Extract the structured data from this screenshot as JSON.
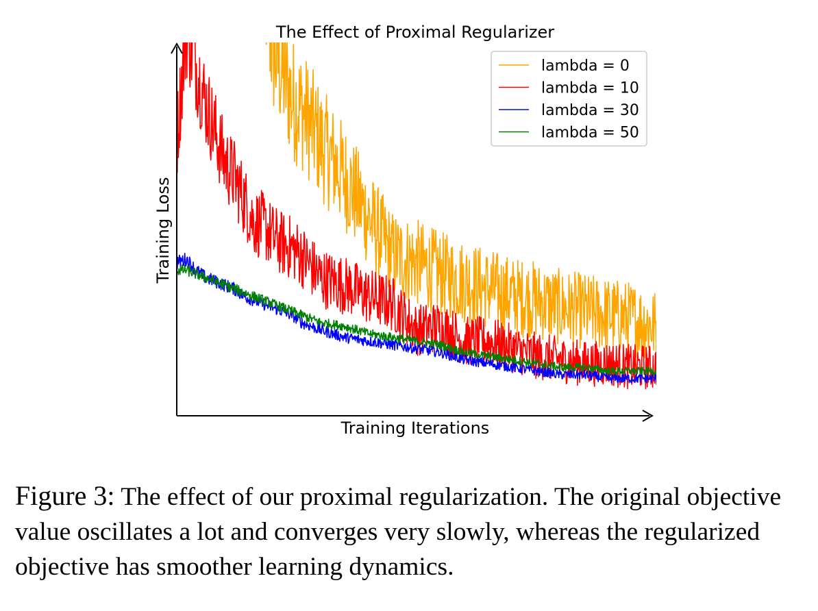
{
  "chart_data": {
    "type": "line",
    "title": "The Effect of Proximal Regularizer",
    "xlabel": "Training Iterations",
    "ylabel": "Training Loss",
    "x_ticks": false,
    "y_ticks": false,
    "grid": false,
    "legend": "top-right",
    "xlim": [
      0,
      100
    ],
    "ylim": [
      0,
      100
    ],
    "x": [
      0,
      2,
      4,
      6,
      8,
      10,
      12,
      14,
      16,
      18,
      20,
      22,
      24,
      26,
      28,
      30,
      35,
      40,
      45,
      50,
      55,
      60,
      65,
      70,
      75,
      80,
      85,
      90,
      95,
      100
    ],
    "series": [
      {
        "name": "lambda = 0",
        "color": "#FFA500",
        "x_start": 17,
        "values": [
          null,
          null,
          null,
          null,
          null,
          null,
          null,
          null,
          null,
          120,
          98,
          92,
          85,
          82,
          78,
          73,
          64,
          53,
          43,
          41,
          38,
          36,
          34,
          32,
          31,
          29,
          28,
          27,
          26,
          24
        ]
      },
      {
        "name": "lambda = 10",
        "color": "#FF0000",
        "values": [
          74,
          104,
          94,
          84,
          76,
          68,
          64,
          58,
          52,
          51,
          48,
          46,
          45,
          43,
          40,
          37,
          35,
          32,
          30,
          23,
          24,
          20,
          20,
          18,
          16,
          15,
          14,
          14,
          13,
          13
        ]
      },
      {
        "name": "lambda = 30",
        "color": "#0000FF",
        "values": [
          41,
          42,
          39,
          37,
          36,
          35,
          34,
          32,
          31,
          30,
          29,
          28,
          27,
          25,
          24,
          23,
          21,
          20,
          19,
          18,
          17,
          15,
          14,
          13,
          12,
          11,
          11,
          10,
          10,
          10
        ]
      },
      {
        "name": "lambda = 50",
        "color": "#008000",
        "values": [
          39,
          39,
          38,
          37,
          36,
          35,
          34,
          33,
          32,
          31,
          30,
          29,
          28,
          27,
          26,
          25,
          24,
          22,
          21,
          20,
          19,
          17,
          16,
          15,
          14,
          13,
          13,
          12,
          12,
          12
        ]
      }
    ]
  },
  "caption": {
    "label": "Figure 3:",
    "text": " The effect of our proximal regularization. The original objective value oscillates a lot and converges very slowly, whereas the regularized objective has smoother learning dynamics."
  }
}
